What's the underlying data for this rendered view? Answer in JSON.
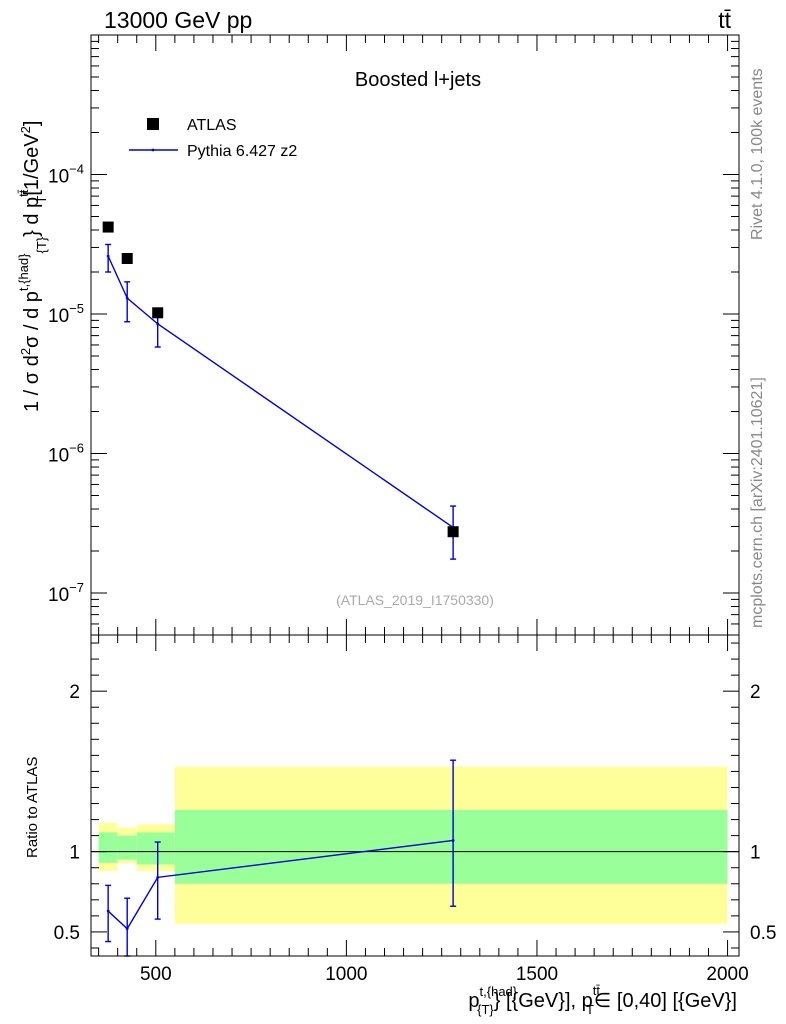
{
  "header": {
    "energy": "13000 GeV pp",
    "process": "tt̄"
  },
  "side": {
    "rivet": "Rivet 4.1.0,  100k events",
    "mcplots": "mcplots.cern.ch [arXiv:2401.10621]"
  },
  "chart_data": [
    {
      "type": "scatter",
      "title": "Boosted l+jets",
      "watermark": "(ATLAS_2019_I1750330)",
      "ylabel": "1 / σ d²σ / d p^{t,{had}}_{T} d p_T^{tt̄} [1/GeV²]",
      "ylabel_parts": {
        "a": "1 / σ d",
        "b": "2",
        "c": "σ / d p",
        "d": "t,{had}",
        "e": "{T}",
        "f": "} d p",
        "g": "tt̄",
        "h": "T",
        "i": "[1/GeV",
        "j": "2",
        "k": "]"
      },
      "yscale": "log",
      "ylim": [
        5e-08,
        0.001
      ],
      "xlim": [
        330,
        2030
      ],
      "y_tick_labels": [
        {
          "base": "10",
          "exp": "−4",
          "value": 0.0001
        },
        {
          "base": "10",
          "exp": "−5",
          "value": 1e-05
        },
        {
          "base": "10",
          "exp": "−6",
          "value": 1e-06
        },
        {
          "base": "10",
          "exp": "−7",
          "value": 1e-07
        }
      ],
      "legend": {
        "position": "top-left",
        "entries": [
          "ATLAS",
          "Pythia 6.427 z2"
        ]
      },
      "series": [
        {
          "name": "ATLAS",
          "marker": "square",
          "color": "#000000",
          "x": [
            375,
            425,
            505,
            1280
          ],
          "y": [
            4.2e-05,
            2.5e-05,
            1.02e-05,
            2.75e-07
          ]
        },
        {
          "name": "Pythia 6.427 z2",
          "marker": "line",
          "color": "#0000dd",
          "x": [
            375,
            425,
            505,
            1280
          ],
          "y": [
            2.6e-05,
            1.3e-05,
            8.5e-06,
            2.95e-07
          ],
          "yerr_low": [
            2e-05,
            8.8e-06,
            5.8e-06,
            1.75e-07
          ],
          "yerr_high": [
            3.15e-05,
            1.7e-05,
            1.07e-05,
            4.2e-07
          ]
        }
      ]
    },
    {
      "type": "line",
      "ylabel": "Ratio to ATLAS",
      "xlabel_parts": {
        "a": "p",
        "b": "t,{had}",
        "c": "{T}",
        "d": "} [{GeV}], p",
        "e": "tt̄",
        "f": "T",
        "g": "∈ [0,40] [{GeV}]"
      },
      "ylim": [
        0.35,
        2.35
      ],
      "xlim": [
        330,
        2030
      ],
      "y_tick_labels": [
        "0.5",
        "1",
        "2"
      ],
      "x_tick_labels": [
        "500",
        "1000",
        "1500",
        "2000"
      ],
      "bands": [
        {
          "x": [
            350,
            400
          ],
          "green": [
            0.93,
            1.12
          ],
          "yellow": [
            0.88,
            1.18
          ]
        },
        {
          "x": [
            400,
            450
          ],
          "green": [
            0.95,
            1.1
          ],
          "yellow": [
            0.93,
            1.15
          ]
        },
        {
          "x": [
            450,
            550
          ],
          "green": [
            0.92,
            1.12
          ],
          "yellow": [
            0.88,
            1.17
          ]
        },
        {
          "x": [
            550,
            2000
          ],
          "green": [
            0.8,
            1.26
          ],
          "yellow": [
            0.55,
            1.53
          ]
        }
      ],
      "series": [
        {
          "name": "Pythia 6.427 z2",
          "color": "#0000dd",
          "x": [
            375,
            425,
            505,
            1280
          ],
          "y": [
            0.63,
            0.52,
            0.84,
            1.07
          ],
          "yerr_low": [
            0.44,
            0.35,
            0.58,
            0.66
          ],
          "yerr_high": [
            0.79,
            0.71,
            1.06,
            1.57
          ]
        }
      ]
    }
  ]
}
